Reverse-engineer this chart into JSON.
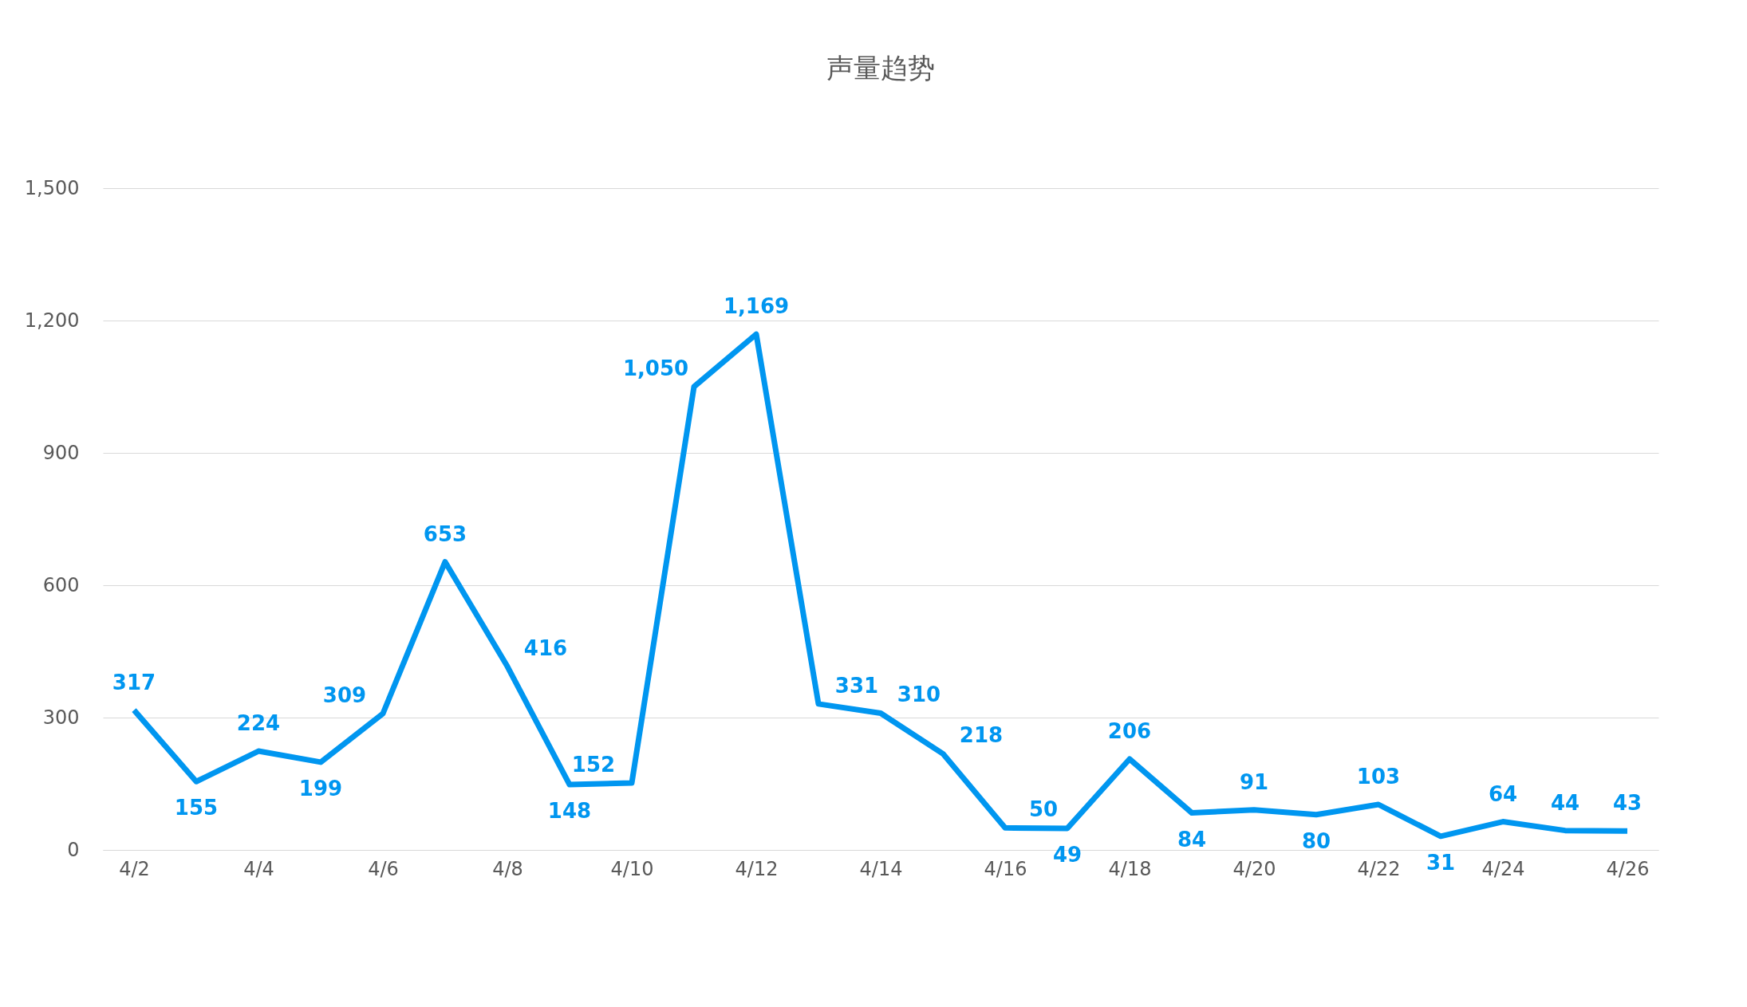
{
  "chart_data": {
    "type": "line",
    "title": "声量趋势",
    "categories": [
      "4/2",
      null,
      "4/4",
      null,
      "4/6",
      null,
      "4/8",
      null,
      "4/10",
      null,
      "4/12",
      null,
      "4/14",
      null,
      "4/16",
      null,
      "4/18",
      null,
      "4/20",
      null,
      "4/22",
      null,
      "4/24",
      null,
      "4/26"
    ],
    "series": [
      {
        "color": "#0096f0",
        "values": [
          317,
          155,
          224,
          199,
          309,
          653,
          416,
          148,
          152,
          1050,
          1169,
          331,
          310,
          218,
          50,
          49,
          206,
          84,
          91,
          80,
          103,
          31,
          64,
          44,
          43
        ],
        "value_labels": [
          "317",
          "155",
          "224",
          "199",
          "309",
          "653",
          "416",
          "148",
          "152",
          "1,050",
          "1,169",
          "331",
          "310",
          "218",
          "50",
          "49",
          "206",
          "84",
          "91",
          "80",
          "103",
          "31",
          "64",
          "44",
          "43"
        ]
      }
    ],
    "ylim": [
      0,
      1500
    ],
    "yticks": [
      0,
      300,
      600,
      900,
      {
        "value": 1200,
        "label": "1,200"
      },
      {
        "value": 1500,
        "label": "1,500"
      }
    ],
    "grid": "y",
    "legend": false,
    "marker": "none",
    "line_style": "solid"
  }
}
